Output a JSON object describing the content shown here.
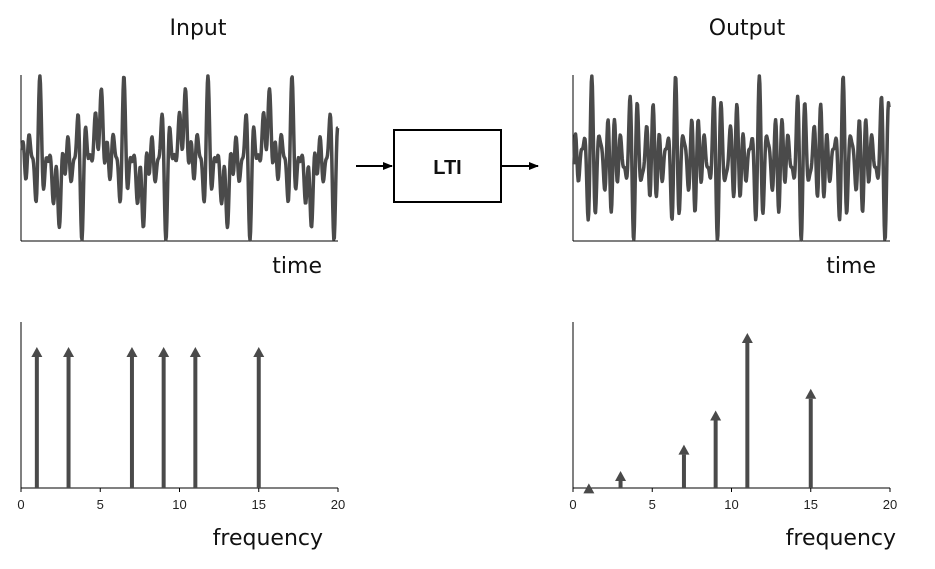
{
  "input_title": "Input",
  "output_title": "Output",
  "system_label": "LTI",
  "time_label": "time",
  "frequency_label": "frequency",
  "colors": {
    "signal": "#4a4a4a",
    "axis": "#000000",
    "box": "#000000"
  },
  "chart_data": [
    {
      "type": "line",
      "xlabel": "time",
      "components": {
        "frequencies": [
          1,
          3,
          7,
          9,
          11,
          15
        ],
        "amplitudes": [
          1,
          1,
          1,
          1,
          1,
          1
        ]
      }
    },
    {
      "type": "line",
      "xlabel": "time",
      "components": {
        "frequencies": [
          1,
          3,
          7,
          9,
          11,
          15
        ],
        "amplitudes": [
          0.03,
          0.11,
          0.28,
          0.5,
          1.0,
          0.64
        ]
      }
    },
    {
      "type": "stem",
      "xlabel": "frequency",
      "x": [
        1,
        3,
        7,
        9,
        11,
        15
      ],
      "y": [
        1,
        1,
        1,
        1,
        1,
        1
      ],
      "xlim": [
        0,
        20
      ],
      "xticks": [
        "0",
        "5",
        "10",
        "15",
        "20"
      ]
    },
    {
      "type": "stem",
      "xlabel": "frequency",
      "x": [
        1,
        3,
        7,
        9,
        11,
        15
      ],
      "y": [
        0.03,
        0.11,
        0.28,
        0.5,
        1.0,
        0.64
      ],
      "xlim": [
        0,
        20
      ],
      "xticks": [
        "0",
        "5",
        "10",
        "15",
        "20"
      ]
    }
  ]
}
